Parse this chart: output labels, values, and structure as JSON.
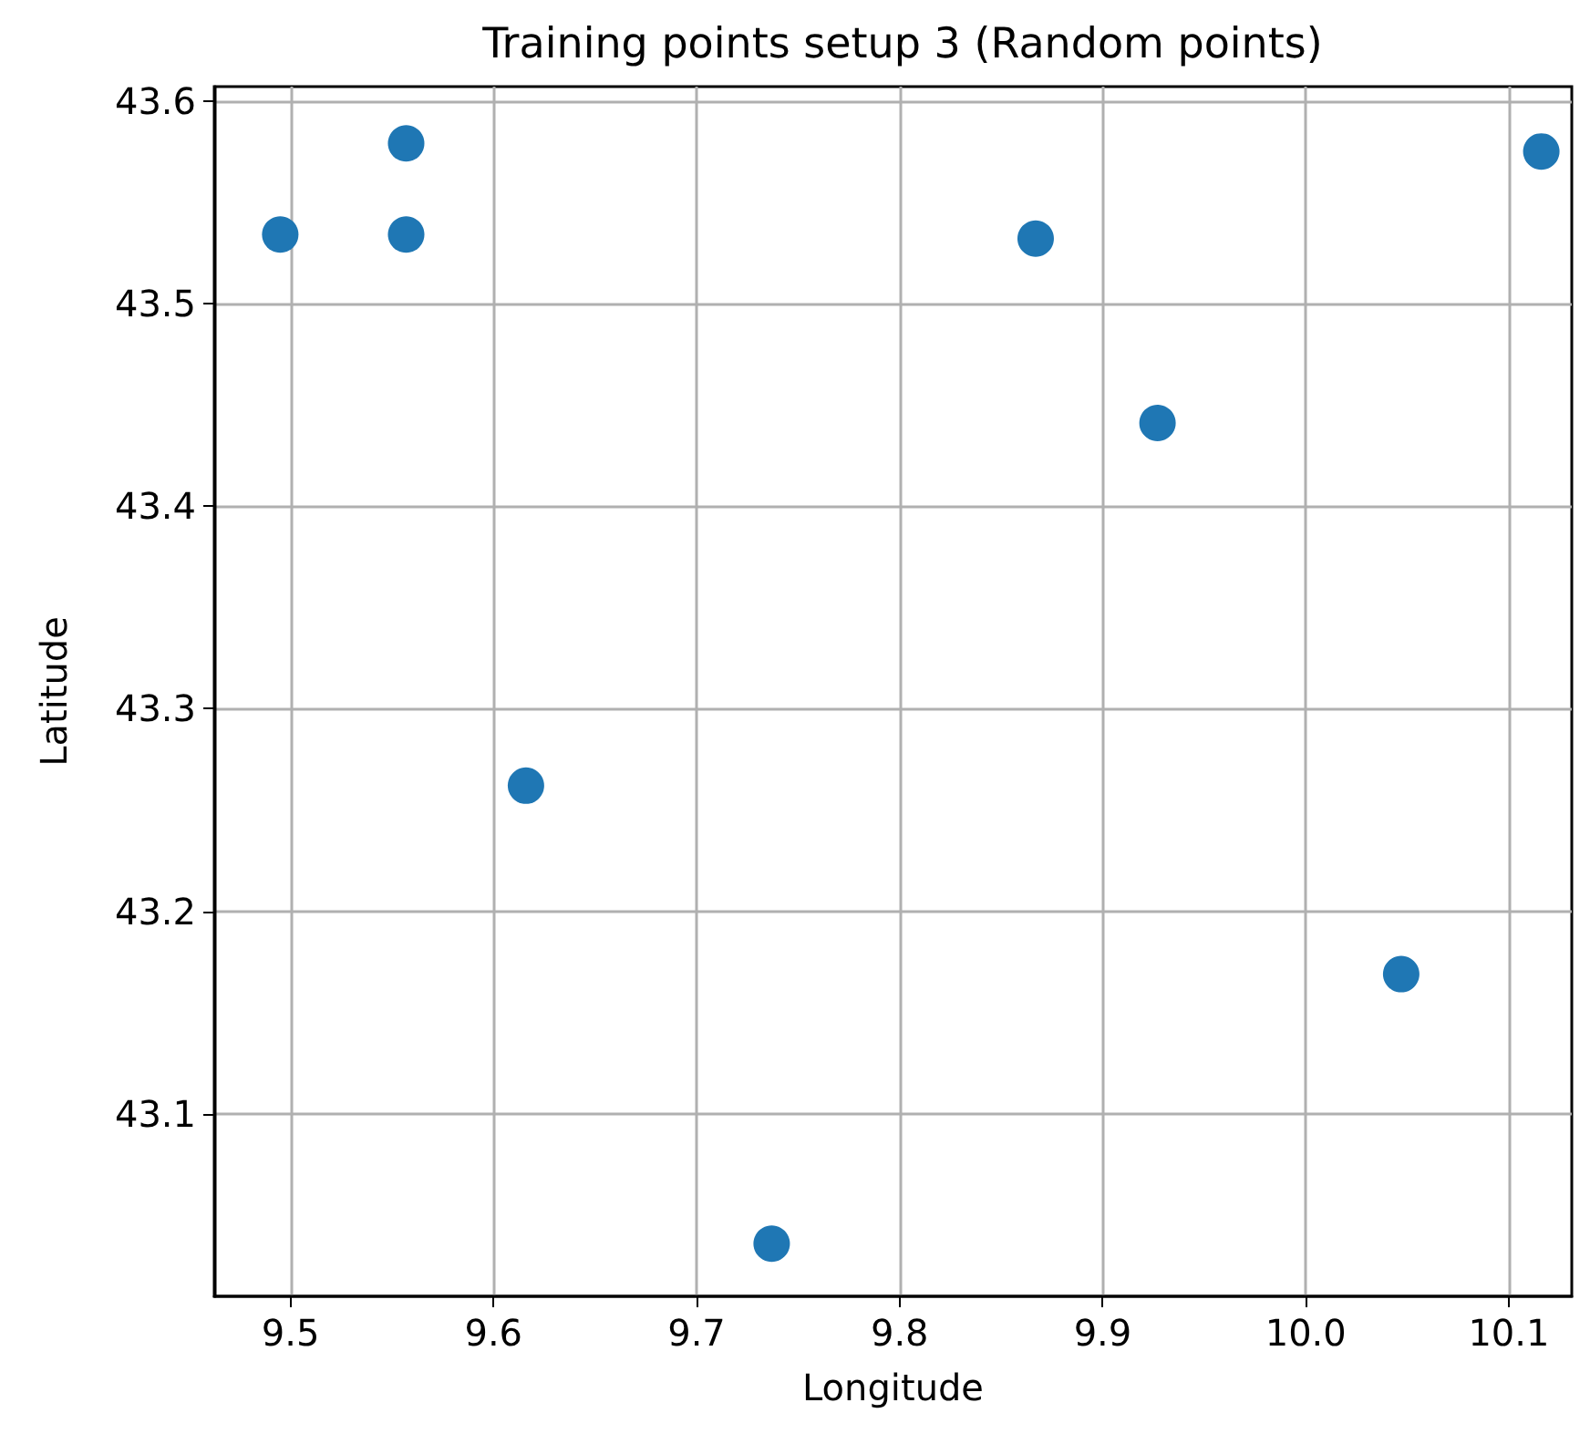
{
  "chart_data": {
    "type": "scatter",
    "title": "Training points setup 3 (Random points)",
    "xlabel": "Longitude",
    "ylabel": "Latitude",
    "x": [
      9.495,
      9.557,
      9.557,
      9.867,
      9.927,
      10.116,
      9.616,
      10.047,
      9.737
    ],
    "series": [
      {
        "color": "#1f77b4",
        "values": [
          43.534,
          43.579,
          43.534,
          43.532,
          43.441,
          43.575,
          43.262,
          43.169,
          43.036
        ]
      }
    ],
    "xlim": [
      9.4625,
      10.131
    ],
    "ylim": [
      43.01,
      43.607
    ],
    "xticks": [
      9.5,
      9.6,
      9.7,
      9.8,
      9.9,
      {
        "value": 10.0,
        "label": "10.0"
      },
      10.1
    ],
    "yticks": [
      43.1,
      43.2,
      43.3,
      43.4,
      43.5,
      43.6
    ],
    "grid": true,
    "marker": "circle"
  }
}
